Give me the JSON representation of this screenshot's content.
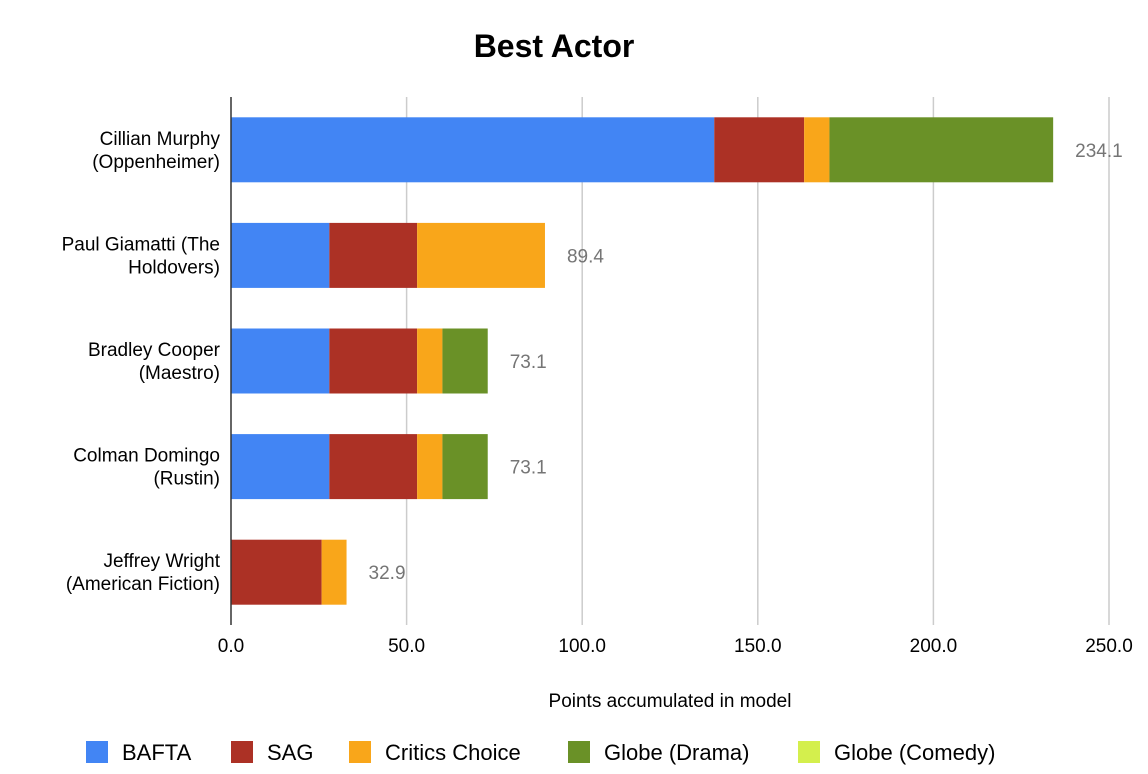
{
  "chart_data": {
    "type": "bar",
    "orientation": "horizontal",
    "stacked": true,
    "title": "Best Actor",
    "xlabel": "Points accumulated in model",
    "ylabel": "",
    "xlim": [
      0,
      250
    ],
    "xticks": [
      "0.0",
      "50.0",
      "100.0",
      "150.0",
      "200.0",
      "250.0"
    ],
    "grid": true,
    "legend_position": "bottom",
    "categories": [
      [
        "Cillian Murphy",
        "(Oppenheimer)"
      ],
      [
        "Paul Giamatti (The",
        "Holdovers)"
      ],
      [
        "Bradley Cooper",
        "(Maestro)"
      ],
      [
        "Colman Domingo",
        "(Rustin)"
      ],
      [
        "Jeffrey Wright",
        "(American Fiction)"
      ]
    ],
    "series": [
      {
        "name": "BAFTA",
        "color": "#4285f4",
        "values": [
          137.6,
          28.0,
          28.0,
          28.0,
          0
        ]
      },
      {
        "name": "SAG",
        "color": "#ac3125",
        "values": [
          25.6,
          25.0,
          25.0,
          25.0,
          25.8
        ]
      },
      {
        "name": "Critics Choice",
        "color": "#f9a61a",
        "values": [
          7.2,
          36.4,
          7.2,
          7.2,
          7.1
        ]
      },
      {
        "name": "Globe (Drama)",
        "color": "#6a9127",
        "values": [
          63.7,
          0,
          12.9,
          12.9,
          0
        ]
      },
      {
        "name": "Globe (Comedy)",
        "color": "#d4ef4d",
        "values": [
          0,
          0,
          0,
          0,
          0
        ]
      }
    ],
    "totals": [
      "234.1",
      "89.4",
      "73.1",
      "73.1",
      "32.9"
    ]
  }
}
